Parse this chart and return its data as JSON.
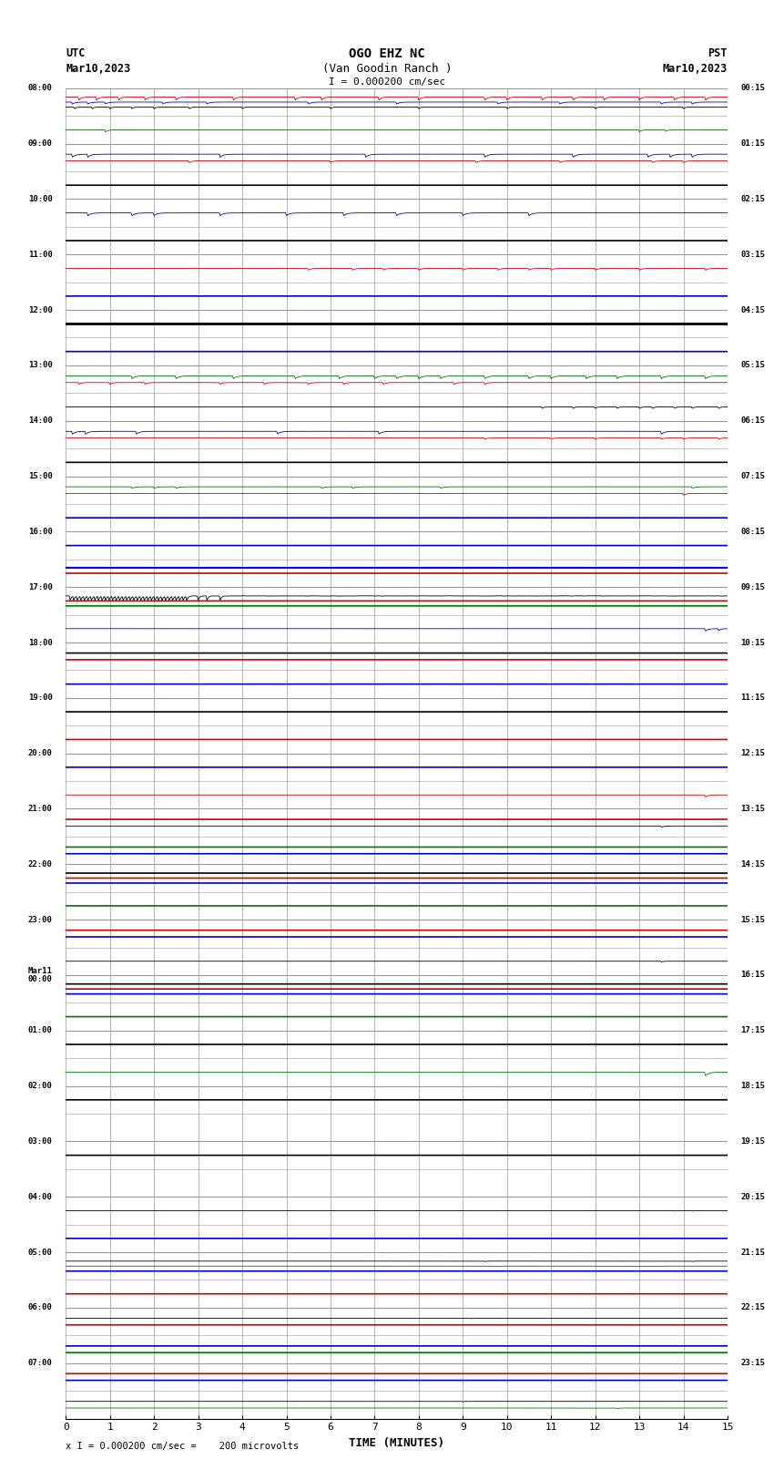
{
  "title_line1": "OGO EHZ NC",
  "title_line2": "(Van Goodin Ranch )",
  "title_line3": "I = 0.000200 cm/sec",
  "left_label_top": "UTC",
  "left_label_date": "Mar10,2023",
  "right_label_top": "PST",
  "right_label_date": "Mar10,2023",
  "xlabel": "TIME (MINUTES)",
  "footer": "x I = 0.000200 cm/sec =    200 microvolts",
  "xlim": [
    0,
    15
  ],
  "background_color": "#ffffff",
  "grid_color": "#999999",
  "utc_labels": [
    "08:00",
    "09:00",
    "10:00",
    "11:00",
    "12:00",
    "13:00",
    "14:00",
    "15:00",
    "16:00",
    "17:00",
    "18:00",
    "19:00",
    "20:00",
    "21:00",
    "22:00",
    "23:00",
    "Mar11\n00:00",
    "01:00",
    "02:00",
    "03:00",
    "04:00",
    "05:00",
    "06:00",
    "07:00"
  ],
  "pst_labels": [
    "00:15",
    "01:15",
    "02:15",
    "03:15",
    "04:15",
    "05:15",
    "06:15",
    "07:15",
    "08:15",
    "09:15",
    "10:15",
    "11:15",
    "12:15",
    "13:15",
    "14:15",
    "15:15",
    "16:15",
    "17:15",
    "18:15",
    "19:15",
    "20:15",
    "21:15",
    "22:15",
    "23:15"
  ]
}
